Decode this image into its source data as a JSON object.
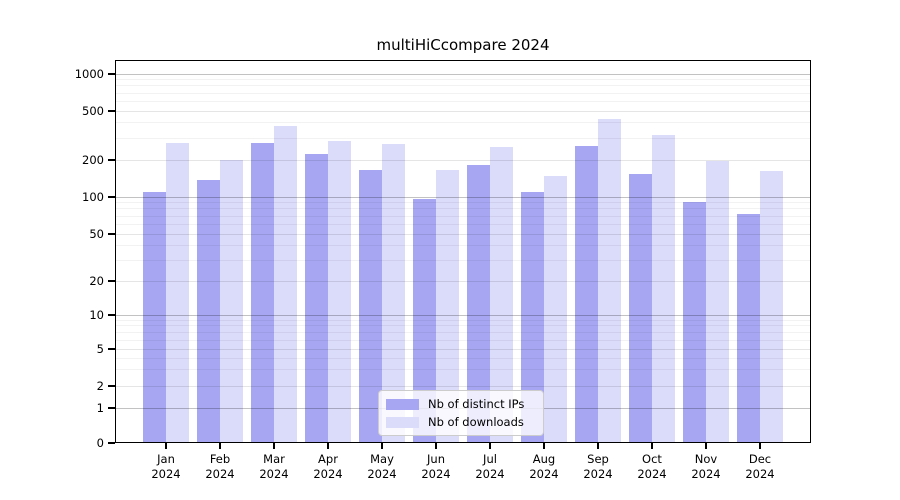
{
  "figure": {
    "title": "multiHiCcompare 2024"
  },
  "chart_data": {
    "type": "bar",
    "title": "multiHiCcompare 2024",
    "xlabel": "",
    "ylabel": "",
    "categories": [
      "Jan",
      "Feb",
      "Mar",
      "Apr",
      "May",
      "Jun",
      "Jul",
      "Aug",
      "Sep",
      "Oct",
      "Nov",
      "Dec"
    ],
    "year": "2024",
    "series": [
      {
        "name": "Nb of distinct IPs",
        "color": "#a6a6f2",
        "values": [
          110,
          137,
          277,
          225,
          165,
          96,
          183,
          110,
          260,
          154,
          92,
          73
        ]
      },
      {
        "name": "Nb of downloads",
        "color": "#dbdbfa",
        "values": [
          275,
          202,
          380,
          285,
          268,
          166,
          254,
          149,
          430,
          317,
          198,
          163
        ]
      }
    ],
    "yticks": [
      0,
      1,
      2,
      5,
      10,
      20,
      50,
      100,
      200,
      500,
      1000
    ],
    "ylim": [
      0,
      1000
    ],
    "yscale": "symlog",
    "grid": "on",
    "legend_position": "lower-center-inside"
  }
}
